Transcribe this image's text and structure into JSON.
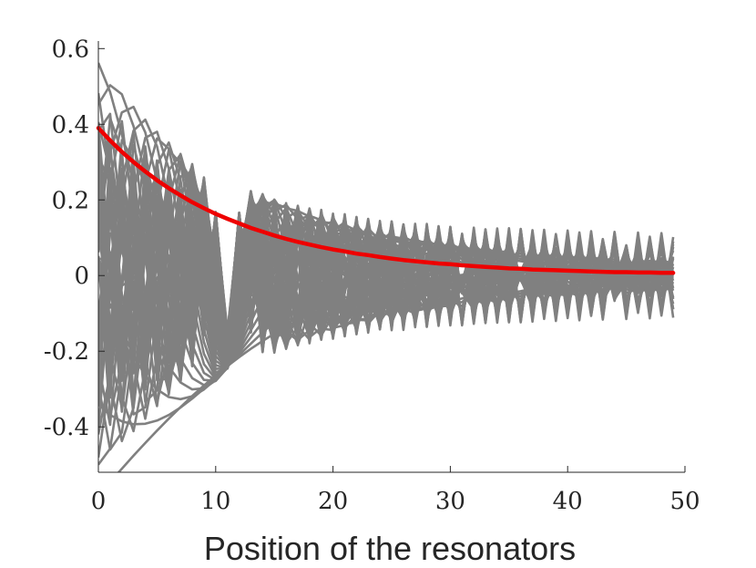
{
  "chart_data": {
    "type": "line",
    "title": "",
    "xlabel": "Position of the resonators",
    "ylabel": "",
    "xlim": [
      0,
      50
    ],
    "ylim": [
      -0.52,
      0.62
    ],
    "x_ticks": [
      0,
      10,
      20,
      30,
      40,
      50
    ],
    "x_tick_labels": [
      "0",
      "10",
      "20",
      "30",
      "40",
      "50"
    ],
    "y_ticks": [
      -0.4,
      -0.2,
      0,
      0.2,
      0.4,
      0.6
    ],
    "y_tick_labels": [
      "-0.4",
      "-0.2",
      "0",
      "0.2",
      "0.4",
      "0.6"
    ],
    "x": [
      0,
      1,
      2,
      3,
      4,
      5,
      6,
      7,
      8,
      9,
      10,
      11,
      12,
      13,
      14,
      15,
      16,
      17,
      18,
      19,
      20,
      21,
      22,
      23,
      24,
      25,
      26,
      27,
      28,
      29,
      30,
      31,
      32,
      33,
      34,
      35,
      36,
      37,
      38,
      39,
      40,
      41,
      42,
      43,
      44,
      45,
      46,
      47,
      48,
      49
    ],
    "series_descriptions": {
      "modes": "50 gray eigenmode curves, each a decaying oscillation in the resonator position",
      "envelope": "red decaying envelope curve"
    },
    "series": [
      {
        "name": "envelope",
        "color": "#ee0000",
        "values": [
          0.39,
          0.357,
          0.327,
          0.3,
          0.275,
          0.252,
          0.231,
          0.212,
          0.194,
          0.178,
          0.163,
          0.15,
          0.138,
          0.126,
          0.116,
          0.106,
          0.097,
          0.089,
          0.082,
          0.075,
          0.069,
          0.064,
          0.058,
          0.054,
          0.049,
          0.045,
          0.041,
          0.038,
          0.035,
          0.032,
          0.03,
          0.027,
          0.025,
          0.023,
          0.021,
          0.019,
          0.018,
          0.016,
          0.015,
          0.014,
          0.013,
          0.012,
          0.011,
          0.01,
          0.009,
          0.009,
          0.008,
          0.008,
          0.007,
          0.007
        ]
      }
    ],
    "modes": {
      "count": 50,
      "color": "#808080",
      "decay_range": [
        0.09,
        0.95
      ],
      "amplitude_range": [
        0.6,
        0.16
      ]
    }
  }
}
